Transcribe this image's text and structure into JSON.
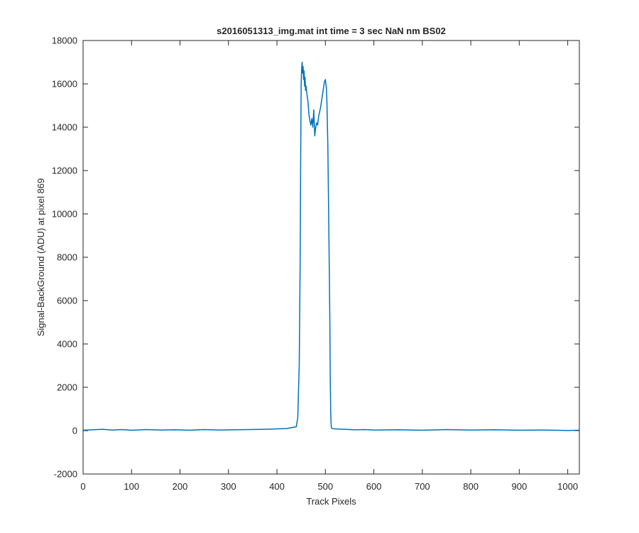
{
  "chart_data": {
    "type": "line",
    "title": "s2016051313_img.mat int time = 3 sec  NaN nm BS02",
    "xlabel": "Track Pixels",
    "ylabel": "Signal-BackGround (ADU) at pixel 869",
    "xlim": [
      0,
      1024
    ],
    "ylim": [
      -2000,
      18000
    ],
    "xticks": [
      0,
      100,
      200,
      300,
      400,
      500,
      600,
      700,
      800,
      900,
      1000
    ],
    "yticks": [
      -2000,
      0,
      2000,
      4000,
      6000,
      8000,
      10000,
      12000,
      14000,
      16000,
      18000
    ],
    "grid": false,
    "line_color": "#0072BD",
    "series": [
      {
        "x": [
          0,
          20,
          40,
          60,
          80,
          100,
          130,
          160,
          190,
          220,
          250,
          280,
          310,
          340,
          370,
          400,
          420,
          440,
          443,
          446,
          448,
          449,
          450,
          451,
          452,
          453,
          454,
          455,
          456,
          457,
          458,
          459,
          460,
          462,
          464,
          466,
          468,
          470,
          472,
          474,
          476,
          478,
          480,
          482,
          484,
          486,
          488,
          490,
          492,
          494,
          496,
          498,
          500,
          502,
          503,
          505,
          507,
          509,
          510,
          511,
          512,
          513,
          514,
          516,
          520,
          540,
          560,
          580,
          600,
          650,
          700,
          750,
          800,
          850,
          900,
          950,
          1000,
          1024
        ],
        "y": [
          20,
          40,
          60,
          30,
          50,
          20,
          50,
          30,
          40,
          20,
          50,
          30,
          40,
          50,
          60,
          80,
          100,
          180,
          600,
          3000,
          8000,
          12500,
          16000,
          16700,
          17000,
          16500,
          16800,
          16200,
          16600,
          15900,
          16300,
          15700,
          15900,
          15500,
          15200,
          14600,
          14300,
          14100,
          14400,
          14000,
          14800,
          13600,
          14000,
          14200,
          14100,
          14500,
          14700,
          14900,
          15200,
          15500,
          15800,
          16100,
          16200,
          15800,
          15300,
          13200,
          9500,
          5500,
          2500,
          800,
          200,
          120,
          100,
          90,
          80,
          60,
          40,
          50,
          30,
          40,
          20,
          50,
          30,
          40,
          20,
          30,
          10,
          20
        ]
      }
    ]
  }
}
